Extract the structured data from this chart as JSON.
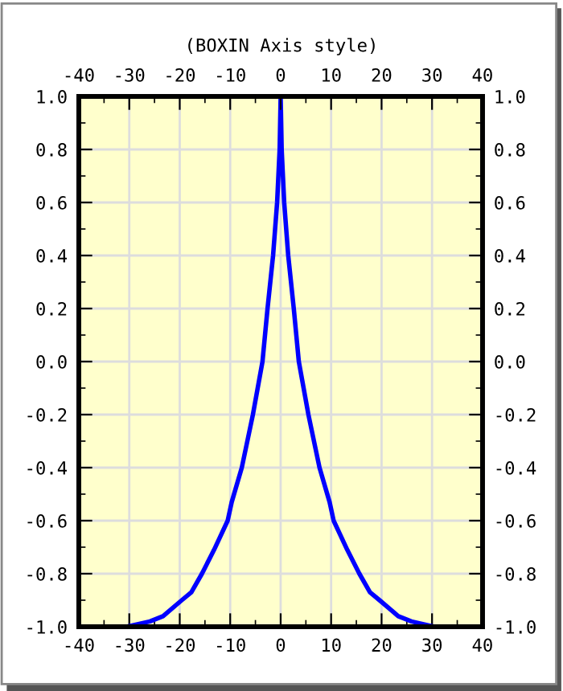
{
  "chart_data": {
    "type": "line",
    "title": "(BOXIN Axis style)",
    "x": [
      -30.5,
      -25.9,
      -23.3,
      -19.6,
      -17.7,
      -15.6,
      -13.2,
      -10.5,
      -9.7,
      -7.7,
      -5.5,
      -3.6,
      -2.6,
      -1.5,
      -0.7,
      -0.4,
      -0.2,
      0,
      0.2,
      0.4,
      0.7,
      1.5,
      2.6,
      3.6,
      5.5,
      7.7,
      9.7,
      10.5,
      13.2,
      15.6,
      17.7,
      19.6,
      23.3,
      25.9,
      30.5
    ],
    "series": [
      {
        "color": "#0000ff",
        "values": [
          -1.0,
          -0.98,
          -0.96,
          -0.9,
          -0.87,
          -0.8,
          -0.71,
          -0.6,
          -0.53,
          -0.4,
          -0.2,
          0.0,
          0.2,
          0.4,
          0.6,
          0.72,
          0.8,
          1.0,
          0.8,
          0.72,
          0.6,
          0.4,
          0.2,
          0.0,
          -0.2,
          -0.4,
          -0.53,
          -0.6,
          -0.71,
          -0.8,
          -0.87,
          -0.9,
          -0.96,
          -0.98,
          -1.0
        ]
      }
    ],
    "xlim": [
      -40,
      40
    ],
    "xticks": [
      -40,
      -30,
      -20,
      -10,
      0,
      10,
      20,
      30,
      40
    ],
    "x2lim": [
      -40,
      40
    ],
    "x2ticks": [
      -40,
      -30,
      -20,
      -10,
      0,
      10,
      20,
      30,
      40
    ],
    "ylim": [
      -1.0,
      1.0
    ],
    "yticks": [
      {
        "value": -1.0,
        "label": "-1.0"
      },
      {
        "value": -0.8,
        "label": "-0.8"
      },
      {
        "value": -0.6,
        "label": "-0.6"
      },
      {
        "value": -0.4,
        "label": "-0.4"
      },
      {
        "value": -0.2,
        "label": "-0.2"
      },
      {
        "value": 0.0,
        "label": "0.0"
      },
      {
        "value": 0.2,
        "label": "0.2"
      },
      {
        "value": 0.4,
        "label": "0.4"
      },
      {
        "value": 0.6,
        "label": "0.6"
      },
      {
        "value": 0.8,
        "label": "0.8"
      },
      {
        "value": 1.0,
        "label": "1.0"
      }
    ],
    "y2lim": [
      -1.0,
      1.0
    ],
    "y2ticks": [
      {
        "value": -1.0,
        "label": "-1.0"
      },
      {
        "value": -0.8,
        "label": "-0.8"
      },
      {
        "value": -0.6,
        "label": "-0.6"
      },
      {
        "value": -0.4,
        "label": "-0.4"
      },
      {
        "value": -0.2,
        "label": "-0.2"
      },
      {
        "value": 0.0,
        "label": "0.0"
      },
      {
        "value": 0.2,
        "label": "0.2"
      },
      {
        "value": 0.4,
        "label": "0.4"
      },
      {
        "value": 0.6,
        "label": "0.6"
      },
      {
        "value": 0.8,
        "label": "0.8"
      },
      {
        "value": 1.0,
        "label": "1.0"
      }
    ],
    "grid": true,
    "line_style": "solid",
    "marker": "none"
  }
}
